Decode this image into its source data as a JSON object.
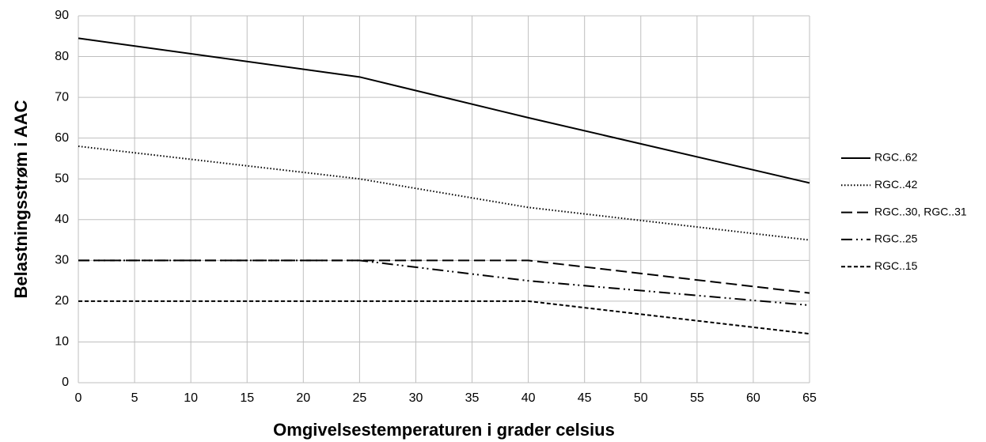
{
  "chart_data": {
    "type": "line",
    "xlabel": "Omgivelsestemperaturen i grader celsius",
    "ylabel": "Belastningsstrøm i AAC",
    "x": [
      0,
      25,
      40,
      65
    ],
    "series": [
      {
        "name": "RGC..62",
        "color": "#000000",
        "dash": "solid",
        "values": [
          84.5,
          75,
          65,
          49
        ]
      },
      {
        "name": "RGC..42",
        "color": "#000000",
        "dash": "dotted",
        "values": [
          58,
          50,
          43,
          35
        ]
      },
      {
        "name": "RGC..30, RGC..31",
        "color": "#000000",
        "dash": "dashed",
        "values": [
          30,
          30,
          30,
          22
        ]
      },
      {
        "name": "RGC..25",
        "color": "#000000",
        "dash": "dashdotdot",
        "values": [
          30,
          30,
          25,
          19
        ]
      },
      {
        "name": "RGC..15",
        "color": "#000000",
        "dash": "shortdash",
        "values": [
          20,
          20,
          20,
          12
        ]
      }
    ],
    "xlim": [
      0,
      65
    ],
    "xticks": [
      0,
      5,
      10,
      15,
      20,
      25,
      30,
      35,
      40,
      45,
      50,
      55,
      60,
      65
    ],
    "ylim": [
      0,
      90
    ],
    "yticks": [
      0,
      10,
      20,
      30,
      40,
      50,
      60,
      70,
      80,
      90
    ],
    "grid": true,
    "legend": "right"
  }
}
